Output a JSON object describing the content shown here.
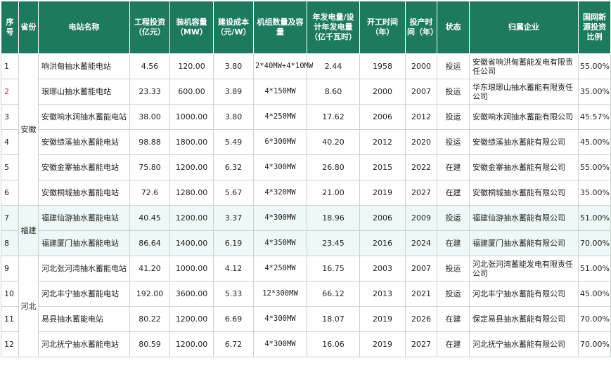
{
  "colors": {
    "header_bg": "#1e7a5f",
    "header_fg": "#ffffff",
    "fujian_row_bg": "#eef8f6",
    "seq_highlight": "#c0392b"
  },
  "headers": {
    "seq": "序号",
    "province": "省份",
    "name": "电站名称",
    "investment": "工程投资（亿元）",
    "capacity": "装机容量（MW）",
    "cost": "建设成本（元/W）",
    "units": "机组数量及容量",
    "generation": "年发电量/设计年发电量（亿千瓦时）",
    "start": "开工时间（年）",
    "operation": "投产时间（年）",
    "status": "状态",
    "company": "归属企业",
    "share": "国网新源投资比例"
  },
  "provinces": {
    "anhui": "安徽",
    "fujian": "福建",
    "hebei": "河北"
  },
  "rows": [
    {
      "seq": "1",
      "name": "响洪甸抽水蓄能电站",
      "investment": "4.56",
      "capacity": "120.00",
      "cost": "3.80",
      "units": "2*40MW+4*10MW",
      "generation": "2.44",
      "start": "1958",
      "operation": "2000",
      "status": "投运",
      "company": "安徽省响洪甸蓄能发电有限责任公司",
      "share": "55.00%"
    },
    {
      "seq": "2",
      "name": "琅琊山抽水蓄能电站",
      "investment": "23.33",
      "capacity": "600.00",
      "cost": "3.89",
      "units": "4*150MW",
      "generation": "8.60",
      "start": "2000",
      "operation": "2007",
      "status": "投运",
      "company": "华东琅琊山抽水蓄能有限责任公司",
      "share": "35.00%"
    },
    {
      "seq": "3",
      "name": "安徽响水涧抽水蓄能电站",
      "investment": "38.00",
      "capacity": "1000.00",
      "cost": "3.80",
      "units": "4*250MW",
      "generation": "17.62",
      "start": "2006",
      "operation": "2012",
      "status": "投运",
      "company": "安徽响水涧抽水蓄能有限公司",
      "share": "45.57%"
    },
    {
      "seq": "4",
      "name": "安徽绩溪抽水蓄能电站",
      "investment": "98.88",
      "capacity": "1800.00",
      "cost": "5.49",
      "units": "6*300MW",
      "generation": "40.20",
      "start": "2012",
      "operation": "2020",
      "status": "投运",
      "company": "安徽绩溪抽水蓄能有限公司",
      "share": "45.00%"
    },
    {
      "seq": "5",
      "name": "安徽金寨抽水蓄能电站",
      "investment": "75.80",
      "capacity": "1200.00",
      "cost": "6.32",
      "units": "4*300MW",
      "generation": "26.80",
      "start": "2015",
      "operation": "2022",
      "status": "在建",
      "company": "安徽金寨抽水蓄能有限公司",
      "share": "55.00%"
    },
    {
      "seq": "6",
      "name": "安徽桐城抽水蓄能电站",
      "investment": "72.6",
      "capacity": "1280.00",
      "cost": "5.67",
      "units": "4*320MW",
      "generation": "21.00",
      "start": "2019",
      "operation": "2027",
      "status": "在建",
      "company": "安徽桐城抽水蓄能有限公司",
      "share": "35.00%"
    },
    {
      "seq": "7",
      "name": "福建仙游抽水蓄能电站",
      "investment": "40.45",
      "capacity": "1200.00",
      "cost": "3.37",
      "units": "4*300MW",
      "generation": "18.96",
      "start": "2006",
      "operation": "2009",
      "status": "投运",
      "company": "福建仙游抽水蓄能有限公司",
      "share": "51.00%"
    },
    {
      "seq": "8",
      "name": "福建厦门抽水蓄能电站",
      "investment": "86.64",
      "capacity": "1400.00",
      "cost": "6.19",
      "units": "4*350MW",
      "generation": "23.45",
      "start": "2016",
      "operation": "2024",
      "status": "在建",
      "company": "福建厦门抽水蓄能有限公司",
      "share": "70.00%"
    },
    {
      "seq": "9",
      "name": "河北张河湾抽水蓄能电站",
      "investment": "41.20",
      "capacity": "1000.00",
      "cost": "4.12",
      "units": "4*250MW",
      "generation": "16.75",
      "start": "2003",
      "operation": "2007",
      "status": "投运",
      "company": "河北张河湾蓄能发电有限责任公司",
      "share": "51.00%"
    },
    {
      "seq": "10",
      "name": "河北丰宁抽水蓄能电站",
      "investment": "192.00",
      "capacity": "3600.00",
      "cost": "5.33",
      "units": "12*300MW",
      "generation": "66.12",
      "start": "2013",
      "operation": "2021",
      "status": "投运",
      "company": "河北丰宁抽水蓄能有限公司",
      "share": "45.00%"
    },
    {
      "seq": "11",
      "name": "易县抽水蓄能电站",
      "investment": "80.22",
      "capacity": "1200.00",
      "cost": "6.69",
      "units": "4*300MW",
      "generation": "18.07",
      "start": "2019",
      "operation": "2026",
      "status": "在建",
      "company": "保定易县抽水蓄能有限公司",
      "share": "70.00%"
    },
    {
      "seq": "12",
      "name": "河北抚宁抽水蓄能电站",
      "investment": "80.59",
      "capacity": "1200.00",
      "cost": "6.72",
      "units": "4*300MW",
      "generation": "16.06",
      "start": "2019",
      "operation": "2027",
      "status": "在建",
      "company": "河北抚宁抽水蓄能有限公司",
      "share": "70.00%"
    }
  ]
}
